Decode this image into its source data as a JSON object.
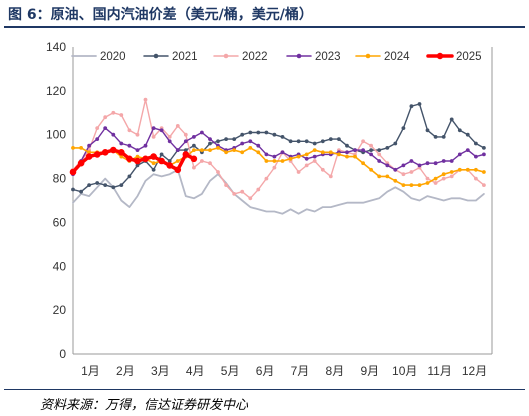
{
  "figure_title": "图 6：原油、国内汽油价差（美元/桶，美元/桶）",
  "source_note": "资料来源：万得，信达证券研发中心",
  "chart_data": {
    "type": "line",
    "title": "",
    "xlabel": "",
    "ylabel": "",
    "ylim": [
      0,
      140
    ],
    "yticks": [
      0,
      20,
      40,
      60,
      80,
      100,
      120,
      140
    ],
    "x_axis": "week_of_year",
    "xlim": [
      1,
      53
    ],
    "month_ticks": [
      "1月",
      "2月",
      "3月",
      "4月",
      "5月",
      "6月",
      "7月",
      "8月",
      "9月",
      "10月",
      "11月",
      "12月"
    ],
    "grid": false,
    "legend_position": "top",
    "series": [
      {
        "name": "2020",
        "color": "#b4b8c6",
        "marker": "none",
        "width": 1.8,
        "x": [
          1,
          2,
          3,
          4,
          5,
          6,
          7,
          8,
          9,
          10,
          11,
          12,
          13,
          14,
          15,
          16,
          17,
          18,
          19,
          20,
          21,
          22,
          23,
          24,
          25,
          26,
          27,
          28,
          29,
          30,
          31,
          32,
          33,
          34,
          35,
          36,
          37,
          38,
          39,
          40,
          41,
          42,
          43,
          44,
          45,
          46,
          47,
          48,
          49,
          50,
          51,
          52
        ],
        "values": [
          69,
          73,
          72,
          76,
          80,
          76,
          70,
          67,
          72,
          79,
          82,
          81,
          82,
          84,
          72,
          71,
          73,
          79,
          82,
          78,
          73,
          70,
          67,
          66,
          65,
          65,
          64,
          66,
          64,
          66,
          65,
          67,
          67,
          68,
          69,
          69,
          69,
          70,
          71,
          74,
          76,
          74,
          71,
          70,
          72,
          71,
          70,
          71,
          71,
          70,
          70,
          73
        ]
      },
      {
        "name": "2021",
        "color": "#44546a",
        "marker": "dot",
        "width": 1.4,
        "x": [
          1,
          2,
          3,
          4,
          5,
          6,
          7,
          8,
          9,
          10,
          11,
          12,
          13,
          14,
          15,
          16,
          17,
          18,
          19,
          20,
          21,
          22,
          23,
          24,
          25,
          26,
          27,
          28,
          29,
          30,
          31,
          32,
          33,
          34,
          35,
          36,
          37,
          38,
          39,
          40,
          41,
          42,
          43,
          44,
          45,
          46,
          47,
          48,
          49,
          50,
          51,
          52
        ],
        "values": [
          75,
          74,
          77,
          78,
          77,
          76,
          77,
          81,
          86,
          88,
          84,
          91,
          88,
          93,
          93,
          95,
          92,
          96,
          97,
          98,
          98,
          100,
          101,
          101,
          101,
          100,
          99,
          97,
          97,
          97,
          96,
          97,
          98,
          98,
          95,
          93,
          92,
          93,
          93,
          94,
          96,
          103,
          113,
          114,
          102,
          99,
          99,
          107,
          102,
          100,
          96,
          94
        ]
      },
      {
        "name": "2022",
        "color": "#f4a7a9",
        "marker": "dot",
        "width": 1.4,
        "x": [
          1,
          2,
          3,
          4,
          5,
          6,
          7,
          8,
          9,
          10,
          11,
          12,
          13,
          14,
          15,
          16,
          17,
          18,
          19,
          20,
          21,
          22,
          23,
          24,
          25,
          26,
          27,
          28,
          29,
          30,
          31,
          32,
          33,
          34,
          35,
          36,
          37,
          38,
          39,
          40,
          41,
          42,
          43,
          44,
          45,
          46,
          47,
          48,
          49,
          50,
          51,
          52
        ],
        "values": [
          84,
          88,
          93,
          103,
          108,
          110,
          109,
          102,
          100,
          116,
          99,
          103,
          99,
          104,
          100,
          85,
          88,
          87,
          83,
          77,
          73,
          74,
          71,
          75,
          80,
          85,
          92,
          88,
          83,
          86,
          88,
          84,
          81,
          93,
          92,
          91,
          97,
          95,
          91,
          87,
          84,
          82,
          83,
          85,
          80,
          78,
          80,
          81,
          84,
          84,
          80,
          77
        ]
      },
      {
        "name": "2023",
        "color": "#7030a0",
        "marker": "dot",
        "width": 1.4,
        "x": [
          1,
          2,
          3,
          4,
          5,
          6,
          7,
          8,
          9,
          10,
          11,
          12,
          13,
          14,
          15,
          16,
          17,
          18,
          19,
          20,
          21,
          22,
          23,
          24,
          25,
          26,
          27,
          28,
          29,
          30,
          31,
          32,
          33,
          34,
          35,
          36,
          37,
          38,
          39,
          40,
          41,
          42,
          43,
          44,
          45,
          46,
          47,
          48,
          49,
          50,
          51,
          52
        ],
        "values": [
          82,
          88,
          95,
          98,
          103,
          100,
          96,
          95,
          93,
          95,
          103,
          102,
          97,
          93,
          97,
          99,
          101,
          98,
          95,
          93,
          94,
          96,
          97,
          95,
          91,
          90,
          92,
          90,
          91,
          89,
          90,
          91,
          91,
          92,
          92,
          93,
          93,
          91,
          88,
          86,
          84,
          86,
          88,
          86,
          87,
          87,
          88,
          88,
          91,
          93,
          90,
          91
        ]
      },
      {
        "name": "2024",
        "color": "#ffa500",
        "marker": "dot",
        "width": 1.6,
        "x": [
          1,
          2,
          3,
          4,
          5,
          6,
          7,
          8,
          9,
          10,
          11,
          12,
          13,
          14,
          15,
          16,
          17,
          18,
          19,
          20,
          21,
          22,
          23,
          24,
          25,
          26,
          27,
          28,
          29,
          30,
          31,
          32,
          33,
          34,
          35,
          36,
          37,
          38,
          39,
          40,
          41,
          42,
          43,
          44,
          45,
          46,
          47,
          48,
          49,
          50,
          51,
          52
        ],
        "values": [
          94,
          94,
          92,
          92,
          92,
          93,
          90,
          88,
          90,
          89,
          87,
          88,
          86,
          88,
          90,
          93,
          93,
          93,
          94,
          92,
          93,
          92,
          94,
          92,
          88,
          88,
          88,
          89,
          90,
          91,
          93,
          92,
          92,
          91,
          90,
          90,
          87,
          84,
          81,
          81,
          79,
          77,
          77,
          77,
          78,
          80,
          82,
          83,
          84,
          84,
          84,
          83
        ]
      },
      {
        "name": "2025",
        "color": "#ff0000",
        "marker": "dot",
        "width": 3.5,
        "x": [
          1,
          2,
          3,
          4,
          5,
          6,
          7,
          8,
          9,
          10,
          11,
          12,
          13,
          14,
          15,
          16
        ],
        "values": [
          83,
          87,
          90,
          91,
          92,
          93,
          92,
          89,
          88,
          89,
          90,
          88,
          86,
          84,
          91,
          89
        ]
      }
    ]
  }
}
